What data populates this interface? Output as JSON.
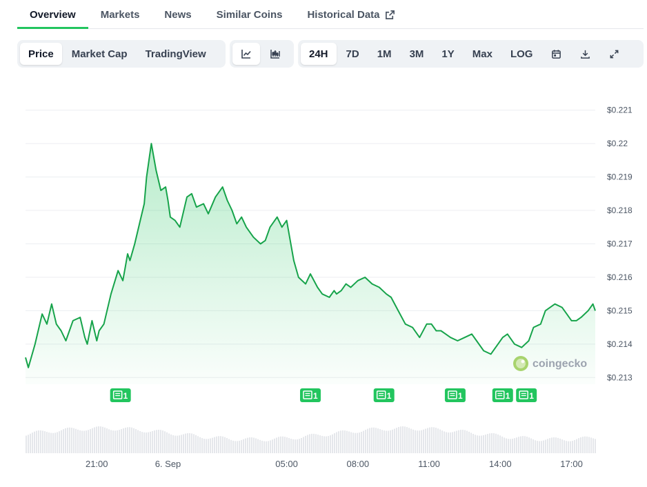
{
  "tabs": [
    {
      "label": "Overview",
      "active": true
    },
    {
      "label": "Markets"
    },
    {
      "label": "News"
    },
    {
      "label": "Similar Coins"
    },
    {
      "label": "Historical Data",
      "external_icon": "external-link-icon"
    }
  ],
  "toolbar": {
    "data_types": [
      {
        "label": "Price",
        "selected": true
      },
      {
        "label": "Market Cap"
      },
      {
        "label": "TradingView"
      }
    ],
    "chart_styles": [
      {
        "icon": "line-chart-icon",
        "selected": true
      },
      {
        "icon": "candlestick-chart-icon"
      }
    ],
    "ranges": [
      {
        "label": "24H",
        "selected": true
      },
      {
        "label": "7D"
      },
      {
        "label": "1M"
      },
      {
        "label": "3M"
      },
      {
        "label": "1Y"
      },
      {
        "label": "Max"
      },
      {
        "label": "LOG"
      }
    ],
    "tools": [
      {
        "icon": "calendar-icon"
      },
      {
        "icon": "download-icon"
      },
      {
        "icon": "fullscreen-icon"
      }
    ]
  },
  "watermark": {
    "text": "coingecko",
    "icon": "gecko-logo-icon"
  },
  "colors": {
    "line": "#16a34a",
    "accent": "#22c55e",
    "badge": "#22c55e",
    "volume": "#e5e7eb"
  },
  "chart_data": {
    "type": "area",
    "ylim": [
      0.2128,
      0.2212
    ],
    "y_ticks": [
      0.213,
      0.214,
      0.215,
      0.216,
      0.217,
      0.218,
      0.219,
      0.22,
      0.221
    ],
    "y_tick_labels": [
      "$0.213",
      "$0.214",
      "$0.215",
      "$0.216",
      "$0.217",
      "$0.218",
      "$0.219",
      "$0.22",
      "$0.221"
    ],
    "x_tick_labels": [
      "21:00",
      "6. Sep",
      "05:00",
      "08:00",
      "11:00",
      "14:00",
      "17:00"
    ],
    "x_tick_hours": [
      3,
      6,
      11,
      14,
      17,
      20,
      23
    ],
    "x_range_hours": [
      0,
      24
    ],
    "grid": true,
    "series": [
      {
        "x": [
          0,
          0.12,
          0.4,
          0.7,
          0.9,
          1.1,
          1.3,
          1.5,
          1.7,
          2.0,
          2.3,
          2.5,
          2.6,
          2.8,
          3.0,
          3.1,
          3.3,
          3.6,
          3.9,
          4.1,
          4.2,
          4.3,
          4.4,
          4.6,
          4.8,
          5.0,
          5.1,
          5.3,
          5.5,
          5.7,
          5.9,
          6.0,
          6.1,
          6.3,
          6.5,
          6.8,
          7.0,
          7.2,
          7.5,
          7.7,
          8.0,
          8.3,
          8.5,
          8.7,
          8.9,
          9.1,
          9.3,
          9.6,
          9.9,
          10.1,
          10.3,
          10.6,
          10.8,
          11.0,
          11.3,
          11.5,
          11.8,
          12.0,
          12.3,
          12.5,
          12.8,
          13.0,
          13.1,
          13.3,
          13.5,
          13.7,
          14.0,
          14.3,
          14.6,
          14.9,
          15.2,
          15.4,
          15.7,
          16.0,
          16.3,
          16.6,
          16.9,
          17.1,
          17.3,
          17.5,
          17.7,
          17.9,
          18.2,
          18.5,
          18.8,
          19.0,
          19.3,
          19.6,
          19.9,
          20.1,
          20.3,
          20.6,
          20.9,
          21.2,
          21.4,
          21.7,
          21.9,
          22.1,
          22.3,
          22.6,
          22.8,
          23.0,
          23.2,
          23.4,
          23.7,
          23.9,
          24.0
        ],
        "y": [
          0.2136,
          0.2133,
          0.214,
          0.2149,
          0.2146,
          0.2152,
          0.2146,
          0.2144,
          0.2141,
          0.2147,
          0.2148,
          0.2142,
          0.214,
          0.2147,
          0.2141,
          0.2144,
          0.2146,
          0.2155,
          0.2162,
          0.2159,
          0.2163,
          0.2167,
          0.2165,
          0.217,
          0.2176,
          0.2182,
          0.219,
          0.22,
          0.2192,
          0.2186,
          0.2187,
          0.2183,
          0.2178,
          0.2177,
          0.2175,
          0.2184,
          0.2185,
          0.2181,
          0.2182,
          0.2179,
          0.2184,
          0.2187,
          0.2183,
          0.218,
          0.2176,
          0.2178,
          0.2175,
          0.2172,
          0.217,
          0.2171,
          0.2175,
          0.2178,
          0.2175,
          0.2177,
          0.2165,
          0.216,
          0.2158,
          0.2161,
          0.2157,
          0.2155,
          0.2154,
          0.2156,
          0.2155,
          0.2156,
          0.2158,
          0.2157,
          0.2159,
          0.216,
          0.2158,
          0.2157,
          0.2155,
          0.2154,
          0.215,
          0.2146,
          0.2145,
          0.2142,
          0.2146,
          0.2146,
          0.2144,
          0.2144,
          0.2143,
          0.2142,
          0.2141,
          0.2142,
          0.2143,
          0.2141,
          0.2138,
          0.2137,
          0.214,
          0.2142,
          0.2143,
          0.214,
          0.2139,
          0.2141,
          0.2145,
          0.2146,
          0.215,
          0.2151,
          0.2152,
          0.2151,
          0.2149,
          0.2147,
          0.2147,
          0.2148,
          0.215,
          0.2152,
          0.215
        ]
      }
    ],
    "news_markers": [
      {
        "x": 4.0,
        "count": "1"
      },
      {
        "x": 12.0,
        "count": "1"
      },
      {
        "x": 15.1,
        "count": "1"
      },
      {
        "x": 18.1,
        "count": "1"
      },
      {
        "x": 20.1,
        "count": "1"
      },
      {
        "x": 21.1,
        "count": "1"
      }
    ]
  }
}
